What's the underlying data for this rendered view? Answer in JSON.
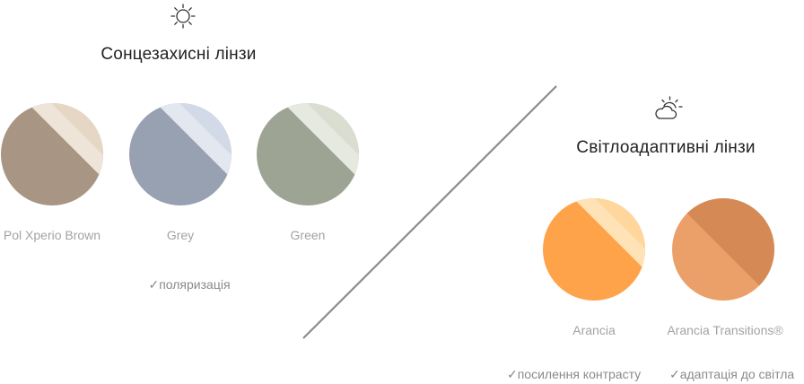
{
  "sunglasses": {
    "icon": "sun-icon",
    "title": "Сонцезахисні лінзи",
    "lenses": [
      {
        "name": "Pol Xperio Brown",
        "color": "#a99583",
        "highlight": "#e9dac8"
      },
      {
        "name": "Grey",
        "color": "#97a1b2",
        "highlight": "#d5dcea"
      },
      {
        "name": "Green",
        "color": "#9ea493",
        "highlight": "#dde2d4"
      }
    ],
    "features": [
      "✓поляризація"
    ]
  },
  "photochromic": {
    "icon": "sun-cloud-icon",
    "title": "Світлоадаптивні лінзи",
    "lenses": [
      {
        "name": "Arancia",
        "color": "#ffa34a",
        "highlight": "#ffd9a0"
      },
      {
        "name": "Arancia Transitions®",
        "color": "#eba06a",
        "highlight": "#d58a55"
      }
    ],
    "features": [
      "✓посилення контрасту",
      "✓адаптація до світла"
    ]
  },
  "colors": {
    "divider": "#8c8c8c",
    "icon_stroke": "#333333"
  }
}
